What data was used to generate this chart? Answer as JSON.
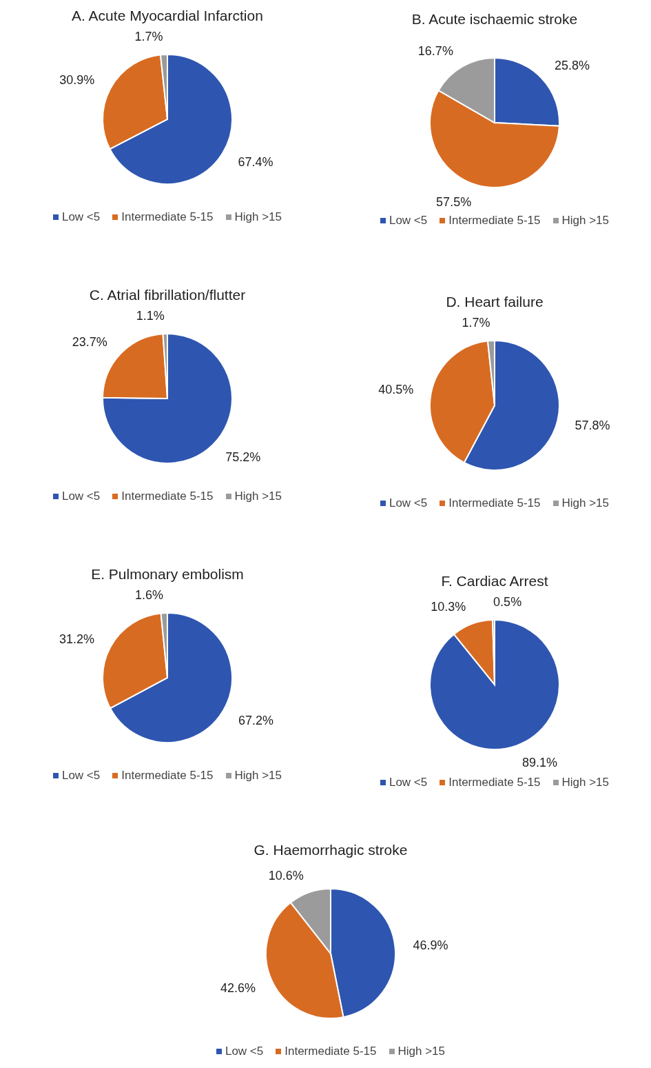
{
  "chart_data": [
    {
      "type": "pie",
      "title": "A. Acute Myocardial Infarction",
      "categories": [
        "Low <5",
        "Intermediate 5-15",
        "High >15"
      ],
      "values": [
        67.4,
        30.9,
        1.7
      ],
      "value_labels": [
        "67.4%",
        "30.9%",
        "1.7%"
      ],
      "colors": [
        "#2e56b0",
        "#d86b22",
        "#9b9b9b"
      ],
      "legend": "bottom"
    },
    {
      "type": "pie",
      "title": "B. Acute ischaemic stroke",
      "categories": [
        "Low <5",
        "Intermediate 5-15",
        "High >15"
      ],
      "values": [
        25.8,
        57.5,
        16.7
      ],
      "value_labels": [
        "25.8%",
        "57.5%",
        "16.7%"
      ],
      "colors": [
        "#2e56b0",
        "#d86b22",
        "#9b9b9b"
      ],
      "legend": "bottom"
    },
    {
      "type": "pie",
      "title": "C. Atrial fibrillation/flutter",
      "categories": [
        "Low <5",
        "Intermediate 5-15",
        "High >15"
      ],
      "values": [
        75.2,
        23.7,
        1.1
      ],
      "value_labels": [
        "75.2%",
        "23.7%",
        "1.1%"
      ],
      "colors": [
        "#2e56b0",
        "#d86b22",
        "#9b9b9b"
      ],
      "legend": "bottom"
    },
    {
      "type": "pie",
      "title": "D. Heart failure",
      "categories": [
        "Low <5",
        "Intermediate 5-15",
        "High >15"
      ],
      "values": [
        57.8,
        40.5,
        1.7
      ],
      "value_labels": [
        "57.8%",
        "40.5%",
        "1.7%"
      ],
      "colors": [
        "#2e56b0",
        "#d86b22",
        "#9b9b9b"
      ],
      "legend": "bottom"
    },
    {
      "type": "pie",
      "title": "E. Pulmonary embolism",
      "categories": [
        "Low <5",
        "Intermediate 5-15",
        "High >15"
      ],
      "values": [
        67.2,
        31.2,
        1.6
      ],
      "value_labels": [
        "67.2%",
        "31.2%",
        "1.6%"
      ],
      "colors": [
        "#2e56b0",
        "#d86b22",
        "#9b9b9b"
      ],
      "legend": "bottom"
    },
    {
      "type": "pie",
      "title": "F. Cardiac Arrest",
      "categories": [
        "Low <5",
        "Intermediate 5-15",
        "High >15"
      ],
      "values": [
        89.1,
        10.3,
        0.5
      ],
      "value_labels": [
        "89.1%",
        "10.3%",
        "0.5%"
      ],
      "colors": [
        "#2e56b0",
        "#d86b22",
        "#9b9b9b"
      ],
      "legend": "bottom"
    },
    {
      "type": "pie",
      "title": "G. Haemorrhagic stroke",
      "categories": [
        "Low <5",
        "Intermediate 5-15",
        "High >15"
      ],
      "values": [
        46.9,
        42.6,
        10.6
      ],
      "value_labels": [
        "46.9%",
        "42.6%",
        "10.6%"
      ],
      "colors": [
        "#2e56b0",
        "#d86b22",
        "#9b9b9b"
      ],
      "legend": "bottom"
    }
  ]
}
